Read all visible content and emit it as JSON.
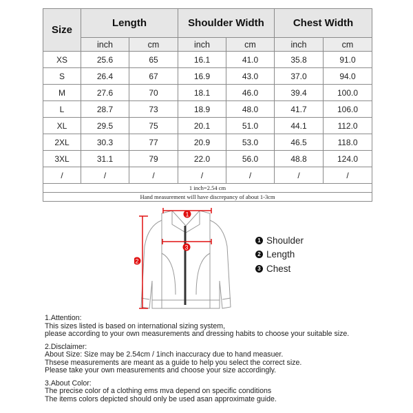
{
  "table": {
    "headers": [
      "Size",
      "Length",
      "Shoulder Width",
      "Chest Width"
    ],
    "units": [
      "inch",
      "cm",
      "inch",
      "cm",
      "inch",
      "cm"
    ],
    "rows": [
      [
        "XS",
        "25.6",
        "65",
        "16.1",
        "41.0",
        "35.8",
        "91.0"
      ],
      [
        "S",
        "26.4",
        "67",
        "16.9",
        "43.0",
        "37.0",
        "94.0"
      ],
      [
        "M",
        "27.6",
        "70",
        "18.1",
        "46.0",
        "39.4",
        "100.0"
      ],
      [
        "L",
        "28.7",
        "73",
        "18.9",
        "48.0",
        "41.7",
        "106.0"
      ],
      [
        "XL",
        "29.5",
        "75",
        "20.1",
        "51.0",
        "44.1",
        "112.0"
      ],
      [
        "2XL",
        "30.3",
        "77",
        "20.9",
        "53.0",
        "46.5",
        "118.0"
      ],
      [
        "3XL",
        "31.1",
        "79",
        "22.0",
        "56.0",
        "48.8",
        "124.0"
      ],
      [
        "/",
        "/",
        "/",
        "/",
        "/",
        "/",
        "/"
      ]
    ],
    "conversion_note": "1 inch=2.54 cm",
    "discrepancy_note": "Hand measurement will have discrepancy of about 1-3cm"
  },
  "diagram": {
    "markers": [
      "1",
      "2",
      "3"
    ],
    "marker_color": "#e01010",
    "legend": [
      {
        "num": "1",
        "label": "Shoulder"
      },
      {
        "num": "2",
        "label": "Length"
      },
      {
        "num": "3",
        "label": "Chest"
      }
    ]
  },
  "notes": [
    {
      "title": "1.Attention:",
      "lines": [
        "This sizes listed is based on international sizing system,",
        "please according to your own measurements and dressing habits to choose your suitable size."
      ]
    },
    {
      "title": "2.Disclaimer:",
      "lines": [
        "About Size: Size may be 2.54cm / 1inch inaccuracy due to hand measuer.",
        "Thsese measurements are meant as a guide to help you select the correct size.",
        "Please take your own measurements and choose your size accordingly."
      ]
    },
    {
      "title": "3.About Color:",
      "lines": [
        "The precise color of a clothing ems mva depend on specific conditions",
        "The items colors depicted should only be used asan approximate guide."
      ]
    }
  ]
}
